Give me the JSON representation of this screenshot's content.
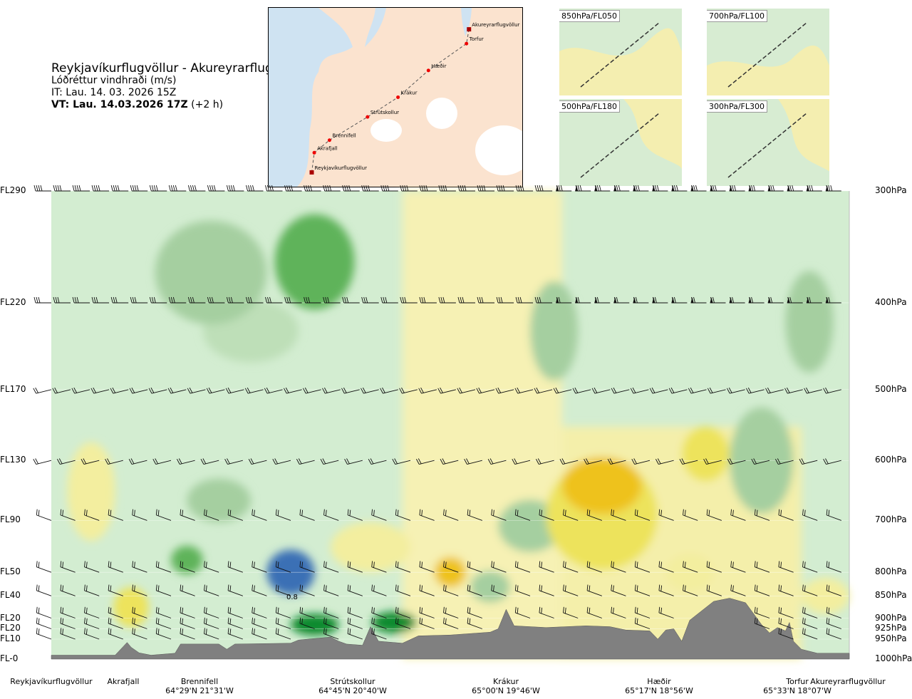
{
  "header": {
    "route_title": "Reykjavíkurflugvöllur - Akureyrarflugvöllur",
    "quantity": "Lóðréttur vindhraði (m/s)",
    "issue_time": "IT: Lau. 14. 03. 2026 15Z",
    "valid_prefix": "VT: Lau. 14.03.2026 17Z",
    "valid_offset": " (+2 h)"
  },
  "map": {
    "waypoints": [
      {
        "name": "Akureyrarflugvöllur",
        "fx": 0.79,
        "fy": 0.12,
        "kind": "airport"
      },
      {
        "name": "Torfur",
        "fx": 0.78,
        "fy": 0.2,
        "kind": "point"
      },
      {
        "name": "Hæðir",
        "fx": 0.63,
        "fy": 0.35,
        "kind": "point"
      },
      {
        "name": "Krákur",
        "fx": 0.51,
        "fy": 0.5,
        "kind": "point"
      },
      {
        "name": "Strútskollur",
        "fx": 0.39,
        "fy": 0.61,
        "kind": "point"
      },
      {
        "name": "Brennifell",
        "fx": 0.24,
        "fy": 0.74,
        "kind": "point"
      },
      {
        "name": "Akrafjall",
        "fx": 0.18,
        "fy": 0.81,
        "kind": "point"
      },
      {
        "name": "Reykjavíkurflugvöllur",
        "fx": 0.17,
        "fy": 0.92,
        "kind": "airport"
      }
    ]
  },
  "insets": [
    {
      "label": "850hPa/FL050"
    },
    {
      "label": "700hPa/FL100"
    },
    {
      "label": "500hPa/FL180"
    },
    {
      "label": "300hPa/FL300"
    }
  ],
  "chart_data": {
    "type": "heatmap",
    "title": "Reykjavíkurflugvöllur - Akureyrarflugvöllur",
    "quantity": "Lóðréttur vindhraði (m/s)",
    "y_scale": "log-pressure",
    "ylim_hpa": [
      1000,
      300
    ],
    "levels": [
      {
        "fl": "FL290",
        "hpa": 300,
        "label": "300hPa"
      },
      {
        "fl": "FL220",
        "hpa": 400,
        "label": "400hPa"
      },
      {
        "fl": "FL170",
        "hpa": 500,
        "label": "500hPa"
      },
      {
        "fl": "FL130",
        "hpa": 600,
        "label": "600hPa"
      },
      {
        "fl": "FL90",
        "hpa": 700,
        "label": "700hPa"
      },
      {
        "fl": "FL50",
        "hpa": 800,
        "label": "800hPa"
      },
      {
        "fl": "FL40",
        "hpa": 850,
        "label": "850hPa"
      },
      {
        "fl": "FL20",
        "hpa": 900,
        "label": "900hPa"
      },
      {
        "fl": "FL20",
        "hpa": 925,
        "label": "925hPa"
      },
      {
        "fl": "FL10",
        "hpa": 950,
        "label": "950hPa"
      },
      {
        "fl": "FL-0",
        "hpa": 1000,
        "label": "1000hPa"
      }
    ],
    "x_range": [
      0,
      1
    ],
    "waypoints": [
      {
        "name": "Reykjavíkurflugvöllur",
        "coord": "",
        "x": 0.0
      },
      {
        "name": "Akrafjall",
        "coord": "",
        "x": 0.09
      },
      {
        "name": "Brennifell",
        "coord": "64°29'N 21°31'W",
        "x": 0.186
      },
      {
        "name": "Strútskollur",
        "coord": "64°45'N 20°40'W",
        "x": 0.378
      },
      {
        "name": "Krákur",
        "coord": "65°00'N 19°46'W",
        "x": 0.57
      },
      {
        "name": "Hæðir",
        "coord": "65°17'N 18°56'W",
        "x": 0.762
      },
      {
        "name": "Torfur",
        "coord": "65°33'N 18°07'W",
        "x": 0.935
      },
      {
        "name": "Akureyrarflugvöllur",
        "coord": "",
        "x": 1.0
      }
    ],
    "terrain_hpa": [
      {
        "x": 0.0,
        "p": 990
      },
      {
        "x": 0.08,
        "p": 990
      },
      {
        "x": 0.095,
        "p": 958
      },
      {
        "x": 0.1,
        "p": 970
      },
      {
        "x": 0.11,
        "p": 984
      },
      {
        "x": 0.125,
        "p": 990
      },
      {
        "x": 0.155,
        "p": 985
      },
      {
        "x": 0.162,
        "p": 962
      },
      {
        "x": 0.17,
        "p": 962
      },
      {
        "x": 0.21,
        "p": 962
      },
      {
        "x": 0.22,
        "p": 975
      },
      {
        "x": 0.23,
        "p": 962
      },
      {
        "x": 0.3,
        "p": 960
      },
      {
        "x": 0.31,
        "p": 952
      },
      {
        "x": 0.35,
        "p": 945
      },
      {
        "x": 0.36,
        "p": 955
      },
      {
        "x": 0.37,
        "p": 962
      },
      {
        "x": 0.39,
        "p": 965
      },
      {
        "x": 0.4,
        "p": 920
      },
      {
        "x": 0.41,
        "p": 955
      },
      {
        "x": 0.44,
        "p": 960
      },
      {
        "x": 0.46,
        "p": 942
      },
      {
        "x": 0.5,
        "p": 940
      },
      {
        "x": 0.55,
        "p": 933
      },
      {
        "x": 0.56,
        "p": 925
      },
      {
        "x": 0.57,
        "p": 880
      },
      {
        "x": 0.58,
        "p": 918
      },
      {
        "x": 0.62,
        "p": 922
      },
      {
        "x": 0.67,
        "p": 918
      },
      {
        "x": 0.7,
        "p": 920
      },
      {
        "x": 0.72,
        "p": 928
      },
      {
        "x": 0.75,
        "p": 930
      },
      {
        "x": 0.76,
        "p": 950
      },
      {
        "x": 0.77,
        "p": 928
      },
      {
        "x": 0.78,
        "p": 925
      },
      {
        "x": 0.79,
        "p": 955
      },
      {
        "x": 0.8,
        "p": 905
      },
      {
        "x": 0.83,
        "p": 862
      },
      {
        "x": 0.85,
        "p": 855
      },
      {
        "x": 0.87,
        "p": 865
      },
      {
        "x": 0.89,
        "p": 915
      },
      {
        "x": 0.9,
        "p": 935
      },
      {
        "x": 0.91,
        "p": 922
      },
      {
        "x": 0.92,
        "p": 930
      },
      {
        "x": 0.925,
        "p": 910
      },
      {
        "x": 0.93,
        "p": 955
      },
      {
        "x": 0.94,
        "p": 975
      },
      {
        "x": 0.96,
        "p": 985
      },
      {
        "x": 1.0,
        "p": 985
      }
    ],
    "contour_label": "0.8",
    "anomalies": [
      {
        "x": 0.3,
        "p": 800,
        "value": 1.2,
        "rx": 0.03,
        "ry": 75
      },
      {
        "x": 0.33,
        "p": 915,
        "value": 0.9,
        "rx": 0.03,
        "ry": 30
      },
      {
        "x": 0.43,
        "p": 910,
        "value": 0.8,
        "rx": 0.028,
        "ry": 30
      },
      {
        "x": 0.5,
        "p": 800,
        "value": -0.5,
        "rx": 0.02,
        "ry": 45
      },
      {
        "x": 0.5,
        "p": 790,
        "value": -0.5,
        "rx": 0.018,
        "ry": 25
      },
      {
        "x": 0.17,
        "p": 775,
        "value": 0.5,
        "rx": 0.02,
        "ry": 40
      },
      {
        "x": 0.1,
        "p": 875,
        "value": -0.3,
        "rx": 0.022,
        "ry": 70
      },
      {
        "x": 0.69,
        "p": 640,
        "value": -0.55,
        "rx": 0.05,
        "ry": 80
      },
      {
        "x": 0.69,
        "p": 690,
        "value": -0.35,
        "rx": 0.07,
        "ry": 180
      },
      {
        "x": 0.82,
        "p": 590,
        "value": -0.3,
        "rx": 0.03,
        "ry": 70
      },
      {
        "x": 0.2,
        "p": 370,
        "value": 0.35,
        "rx": 0.07,
        "ry": 90
      },
      {
        "x": 0.33,
        "p": 360,
        "value": 0.55,
        "rx": 0.05,
        "ry": 80
      },
      {
        "x": 0.21,
        "p": 665,
        "value": 0.3,
        "rx": 0.04,
        "ry": 60
      },
      {
        "x": 0.6,
        "p": 710,
        "value": 0.3,
        "rx": 0.04,
        "ry": 80
      },
      {
        "x": 0.63,
        "p": 430,
        "value": 0.25,
        "rx": 0.03,
        "ry": 100
      },
      {
        "x": 0.89,
        "p": 600,
        "value": 0.3,
        "rx": 0.04,
        "ry": 150
      },
      {
        "x": 0.95,
        "p": 420,
        "value": 0.3,
        "rx": 0.03,
        "ry": 100
      },
      {
        "x": 0.05,
        "p": 650,
        "value": -0.25,
        "rx": 0.03,
        "ry": 150
      },
      {
        "x": 0.4,
        "p": 750,
        "value": -0.25,
        "rx": 0.05,
        "ry": 80
      },
      {
        "x": 0.55,
        "p": 830,
        "value": 0.35,
        "rx": 0.025,
        "ry": 50
      },
      {
        "x": 0.8,
        "p": 800,
        "value": -0.2,
        "rx": 0.03,
        "ry": 60
      },
      {
        "x": 0.97,
        "p": 850,
        "value": -0.2,
        "rx": 0.03,
        "ry": 60
      },
      {
        "x": 0.25,
        "p": 430,
        "value": 0.2,
        "rx": 0.06,
        "ry": 60
      }
    ],
    "wind_levels_hpa": [
      300,
      400,
      500,
      600,
      700,
      800,
      850,
      900,
      925,
      950
    ]
  }
}
